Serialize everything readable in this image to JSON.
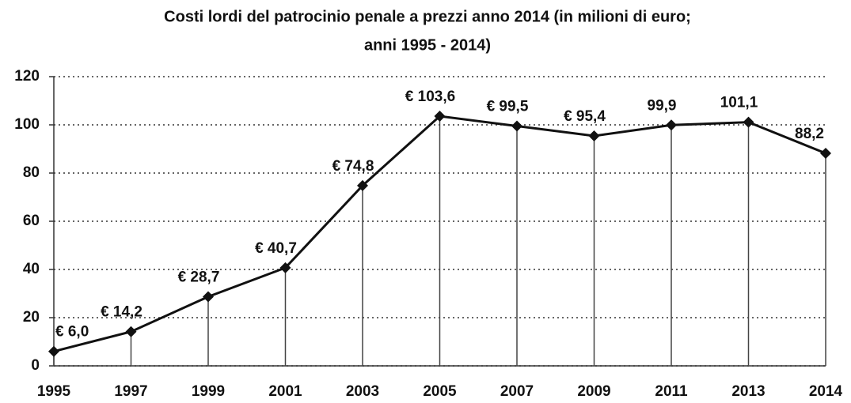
{
  "chart_data": {
    "type": "line",
    "title": [
      "Costi lordi del patrocinio penale a prezzi anno 2014 (in milioni di euro;",
      "anni 1995 - 2014)"
    ],
    "categories": [
      "1995",
      "1997",
      "1999",
      "2001",
      "2003",
      "2005",
      "2007",
      "2009",
      "2011",
      "2013",
      "2014"
    ],
    "series": [
      {
        "name": "Costi lordi",
        "color": "#111111",
        "values": [
          6.0,
          14.2,
          28.7,
          40.7,
          74.8,
          103.6,
          99.5,
          95.4,
          99.9,
          101.1,
          88.2
        ],
        "value_labels": [
          "€ 6,0",
          "€ 14,2",
          "€ 28,7",
          "€ 40,7",
          "€ 74,8",
          "€ 103,6",
          "€ 99,5",
          "€ 95,4",
          "99,9",
          "101,1",
          "88,2"
        ]
      }
    ],
    "ylim": [
      0,
      120
    ],
    "yticks": [
      0,
      20,
      40,
      60,
      80,
      100,
      120
    ],
    "grid": true
  }
}
